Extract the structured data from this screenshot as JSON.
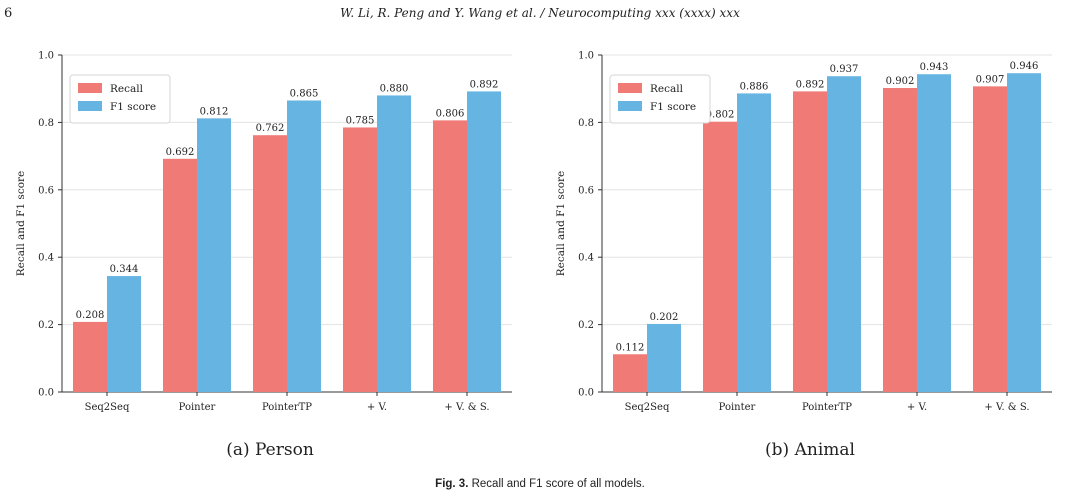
{
  "page": {
    "page_number": "6",
    "running_header": "W. Li, R. Peng and Y. Wang et al. / Neurocomputing xxx (xxxx) xxx",
    "figure_label": "Fig. 3.",
    "figure_caption": "Recall and F1 score of all models."
  },
  "colors": {
    "recall": "#ef7a76",
    "f1": "#66b4e2",
    "grid": "#e3e3e3"
  },
  "chart_data": [
    {
      "type": "bar",
      "caption": "(a) Person",
      "ylabel": "Recall and F1 score",
      "categories": [
        "Seq2Seq",
        "Pointer",
        "PointerTP",
        "+ V.",
        "+ V. & S."
      ],
      "series": [
        {
          "name": "Recall",
          "values": [
            0.208,
            0.692,
            0.762,
            0.785,
            0.806
          ]
        },
        {
          "name": "F1 score",
          "values": [
            0.344,
            0.812,
            0.865,
            0.88,
            0.892
          ]
        }
      ],
      "data_labels": [
        [
          "0.208",
          "0.692",
          "0.762",
          "0.785",
          "0.806"
        ],
        [
          "0.344",
          "0.812",
          "0.865",
          "0.880",
          "0.892"
        ]
      ],
      "ylim": [
        0,
        1.0
      ],
      "yticks": [
        "0.0",
        "0.2",
        "0.4",
        "0.6",
        "0.8",
        "1.0"
      ],
      "grid": true,
      "legend": "top-left"
    },
    {
      "type": "bar",
      "caption": "(b) Animal",
      "ylabel": "Recall and F1 score",
      "categories": [
        "Seq2Seq",
        "Pointer",
        "PointerTP",
        "+ V.",
        "+ V. & S."
      ],
      "series": [
        {
          "name": "Recall",
          "values": [
            0.112,
            0.802,
            0.892,
            0.902,
            0.907
          ]
        },
        {
          "name": "F1 score",
          "values": [
            0.202,
            0.886,
            0.937,
            0.943,
            0.946
          ]
        }
      ],
      "data_labels": [
        [
          "0.112",
          "0.802",
          "0.892",
          "0.902",
          "0.907"
        ],
        [
          "0.202",
          "0.886",
          "0.937",
          "0.943",
          "0.946"
        ]
      ],
      "ylim": [
        0,
        1.0
      ],
      "yticks": [
        "0.0",
        "0.2",
        "0.4",
        "0.6",
        "0.8",
        "1.0"
      ],
      "grid": true,
      "legend": "top-left"
    }
  ]
}
